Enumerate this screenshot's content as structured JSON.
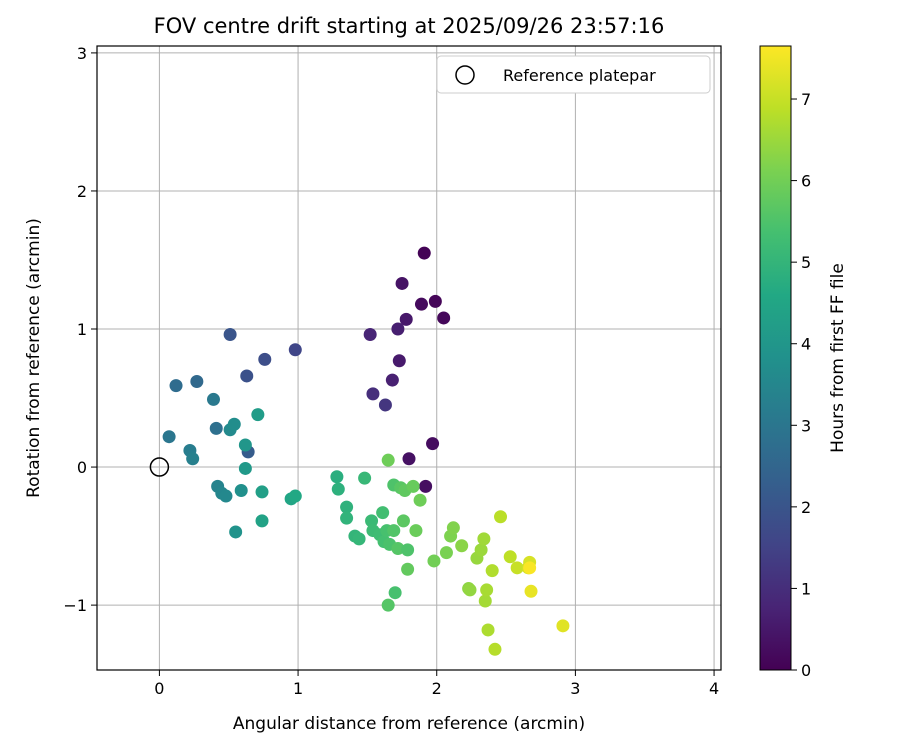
{
  "chart_data": {
    "type": "scatter",
    "title": "FOV centre drift starting at 2025/09/26 23:57:16",
    "xlabel": "Angular distance from reference (arcmin)",
    "ylabel": "Rotation from reference (arcmin)",
    "xlim": [
      -0.45,
      4.05
    ],
    "ylim": [
      -1.47,
      3.05
    ],
    "xticks": [
      0,
      1,
      2,
      3,
      4
    ],
    "xtick_labels": [
      "0",
      "1",
      "2",
      "3",
      "4"
    ],
    "yticks": [
      -1,
      0,
      1,
      2,
      3
    ],
    "ytick_labels": [
      "−1",
      "0",
      "1",
      "2",
      "3"
    ],
    "grid": true,
    "legend": {
      "position": "top-right",
      "entries": [
        "Reference platepar"
      ]
    },
    "reference_point": {
      "name": "Reference platepar",
      "x": 0,
      "y": 0
    },
    "colorbar": {
      "label": "Hours from first FF file",
      "colormap": "viridis",
      "range": [
        0,
        7.65
      ],
      "ticks": [
        0,
        1,
        2,
        3,
        4,
        5,
        6,
        7
      ],
      "tick_labels": [
        "0",
        "1",
        "2",
        "3",
        "4",
        "5",
        "6",
        "7"
      ]
    },
    "points": [
      {
        "x": 1.91,
        "y": 1.55,
        "h": 0.05
      },
      {
        "x": 1.99,
        "y": 1.2,
        "h": 0.1
      },
      {
        "x": 2.05,
        "y": 1.08,
        "h": 0.15
      },
      {
        "x": 1.89,
        "y": 1.18,
        "h": 0.2
      },
      {
        "x": 1.97,
        "y": 0.17,
        "h": 0.25
      },
      {
        "x": 1.92,
        "y": -0.14,
        "h": 0.3
      },
      {
        "x": 1.8,
        "y": 0.06,
        "h": 0.35
      },
      {
        "x": 1.75,
        "y": 1.33,
        "h": 0.4
      },
      {
        "x": 1.78,
        "y": 1.07,
        "h": 0.5
      },
      {
        "x": 1.73,
        "y": 0.77,
        "h": 0.55
      },
      {
        "x": 1.72,
        "y": 1.0,
        "h": 0.65
      },
      {
        "x": 1.68,
        "y": 0.63,
        "h": 0.7
      },
      {
        "x": 1.52,
        "y": 0.96,
        "h": 0.8
      },
      {
        "x": 1.54,
        "y": 0.53,
        "h": 1.0
      },
      {
        "x": 1.63,
        "y": 0.45,
        "h": 1.2
      },
      {
        "x": 0.98,
        "y": 0.85,
        "h": 1.6
      },
      {
        "x": 0.76,
        "y": 0.78,
        "h": 1.8
      },
      {
        "x": 0.63,
        "y": 0.66,
        "h": 1.9
      },
      {
        "x": 0.51,
        "y": 0.96,
        "h": 2.0
      },
      {
        "x": 0.64,
        "y": 0.11,
        "h": 2.2
      },
      {
        "x": 0.27,
        "y": 0.62,
        "h": 2.6
      },
      {
        "x": 0.12,
        "y": 0.59,
        "h": 2.7
      },
      {
        "x": 0.41,
        "y": 0.28,
        "h": 2.8
      },
      {
        "x": 0.07,
        "y": 0.22,
        "h": 3.0
      },
      {
        "x": 0.39,
        "y": 0.49,
        "h": 3.1
      },
      {
        "x": 0.22,
        "y": 0.12,
        "h": 3.2
      },
      {
        "x": 0.24,
        "y": 0.06,
        "h": 3.3
      },
      {
        "x": 0.42,
        "y": -0.14,
        "h": 3.4
      },
      {
        "x": 0.45,
        "y": -0.19,
        "h": 3.5
      },
      {
        "x": 0.48,
        "y": -0.21,
        "h": 3.55
      },
      {
        "x": 0.51,
        "y": 0.27,
        "h": 3.6
      },
      {
        "x": 0.54,
        "y": 0.31,
        "h": 3.7
      },
      {
        "x": 0.59,
        "y": -0.17,
        "h": 3.8
      },
      {
        "x": 0.55,
        "y": -0.47,
        "h": 3.9
      },
      {
        "x": 0.62,
        "y": 0.16,
        "h": 4.0
      },
      {
        "x": 0.62,
        "y": -0.01,
        "h": 4.1
      },
      {
        "x": 0.71,
        "y": 0.38,
        "h": 4.2
      },
      {
        "x": 0.74,
        "y": -0.18,
        "h": 4.3
      },
      {
        "x": 0.74,
        "y": -0.39,
        "h": 4.4
      },
      {
        "x": 0.95,
        "y": -0.23,
        "h": 4.5
      },
      {
        "x": 0.98,
        "y": -0.21,
        "h": 4.6
      },
      {
        "x": 1.28,
        "y": -0.07,
        "h": 4.8
      },
      {
        "x": 1.29,
        "y": -0.16,
        "h": 4.85
      },
      {
        "x": 1.35,
        "y": -0.29,
        "h": 4.9
      },
      {
        "x": 1.35,
        "y": -0.37,
        "h": 4.95
      },
      {
        "x": 1.41,
        "y": -0.5,
        "h": 5.0
      },
      {
        "x": 1.44,
        "y": -0.52,
        "h": 5.05
      },
      {
        "x": 1.48,
        "y": -0.08,
        "h": 5.1
      },
      {
        "x": 1.53,
        "y": -0.39,
        "h": 5.15
      },
      {
        "x": 1.54,
        "y": -0.46,
        "h": 5.2
      },
      {
        "x": 1.59,
        "y": -0.49,
        "h": 5.25
      },
      {
        "x": 1.61,
        "y": -0.33,
        "h": 5.3
      },
      {
        "x": 1.62,
        "y": -0.54,
        "h": 5.35
      },
      {
        "x": 1.64,
        "y": -0.46,
        "h": 5.4
      },
      {
        "x": 1.66,
        "y": -0.56,
        "h": 5.45
      },
      {
        "x": 1.69,
        "y": -0.13,
        "h": 5.5
      },
      {
        "x": 1.69,
        "y": -0.46,
        "h": 5.55
      },
      {
        "x": 1.72,
        "y": -0.59,
        "h": 5.6
      },
      {
        "x": 1.74,
        "y": -0.15,
        "h": 5.65
      },
      {
        "x": 1.76,
        "y": -0.39,
        "h": 5.7
      },
      {
        "x": 1.77,
        "y": -0.17,
        "h": 5.75
      },
      {
        "x": 1.79,
        "y": -0.74,
        "h": 5.8
      },
      {
        "x": 1.79,
        "y": -0.6,
        "h": 5.5
      },
      {
        "x": 1.83,
        "y": -0.14,
        "h": 5.85
      },
      {
        "x": 1.85,
        "y": -0.46,
        "h": 5.9
      },
      {
        "x": 1.88,
        "y": -0.24,
        "h": 5.95
      },
      {
        "x": 1.7,
        "y": -0.91,
        "h": 5.4
      },
      {
        "x": 1.65,
        "y": -1.0,
        "h": 5.6
      },
      {
        "x": 1.65,
        "y": 0.05,
        "h": 5.95
      },
      {
        "x": 1.98,
        "y": -0.68,
        "h": 6.0
      },
      {
        "x": 2.07,
        "y": -0.62,
        "h": 6.1
      },
      {
        "x": 2.1,
        "y": -0.5,
        "h": 6.15
      },
      {
        "x": 2.12,
        "y": -0.44,
        "h": 6.2
      },
      {
        "x": 2.18,
        "y": -0.57,
        "h": 6.3
      },
      {
        "x": 2.23,
        "y": -0.88,
        "h": 6.35
      },
      {
        "x": 2.24,
        "y": -0.89,
        "h": 6.4
      },
      {
        "x": 2.29,
        "y": -0.66,
        "h": 6.45
      },
      {
        "x": 2.32,
        "y": -0.6,
        "h": 6.5
      },
      {
        "x": 2.34,
        "y": -0.52,
        "h": 6.55
      },
      {
        "x": 2.35,
        "y": -0.97,
        "h": 6.6
      },
      {
        "x": 2.36,
        "y": -0.89,
        "h": 6.65
      },
      {
        "x": 2.37,
        "y": -1.18,
        "h": 6.7
      },
      {
        "x": 2.4,
        "y": -0.75,
        "h": 6.75
      },
      {
        "x": 2.42,
        "y": -1.32,
        "h": 6.8
      },
      {
        "x": 2.46,
        "y": -0.36,
        "h": 6.85
      },
      {
        "x": 2.53,
        "y": -0.65,
        "h": 6.9
      },
      {
        "x": 2.58,
        "y": -0.73,
        "h": 7.0
      },
      {
        "x": 2.66,
        "y": -0.73,
        "h": 7.1
      },
      {
        "x": 2.67,
        "y": -0.69,
        "h": 7.2
      },
      {
        "x": 2.68,
        "y": -0.9,
        "h": 7.4
      },
      {
        "x": 2.91,
        "y": -1.15,
        "h": 7.3
      },
      {
        "x": 2.67,
        "y": -0.73,
        "h": 7.6
      }
    ]
  }
}
